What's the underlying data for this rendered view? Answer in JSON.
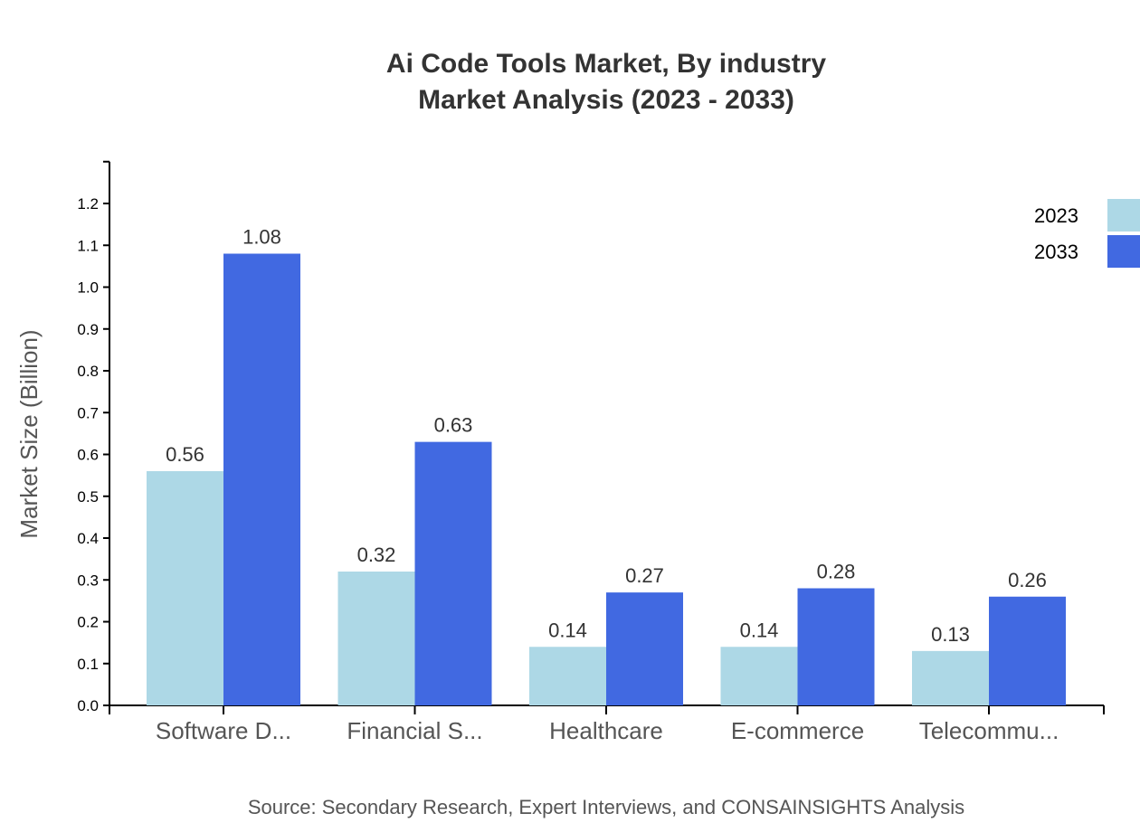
{
  "chart_data": {
    "type": "bar",
    "title": "Ai Code Tools Market, By industry",
    "subtitle": "Market Analysis (2023 - 2033)",
    "xlabel": "",
    "ylabel": "Market Size (Billion)",
    "source": "Source: Secondary Research, Expert Interviews, and CONSAINSIGHTS Analysis",
    "categories": [
      "Software D...",
      "Financial S...",
      "Healthcare",
      "E-commerce",
      "Telecommu..."
    ],
    "series": [
      {
        "name": "2023",
        "color": "#add8e6",
        "values": [
          0.56,
          0.32,
          0.14,
          0.14,
          0.13
        ]
      },
      {
        "name": "2033",
        "color": "#4169e1",
        "values": [
          1.08,
          0.63,
          0.27,
          0.28,
          0.26
        ]
      }
    ],
    "yticks": [
      "0.0",
      "0.1",
      "0.2",
      "0.3",
      "0.4",
      "0.5",
      "0.6",
      "0.7",
      "0.8",
      "0.9",
      "1.0",
      "1.1",
      "1.2"
    ],
    "ylim": [
      0,
      1.3
    ],
    "grid": false,
    "legend": "top-right"
  }
}
